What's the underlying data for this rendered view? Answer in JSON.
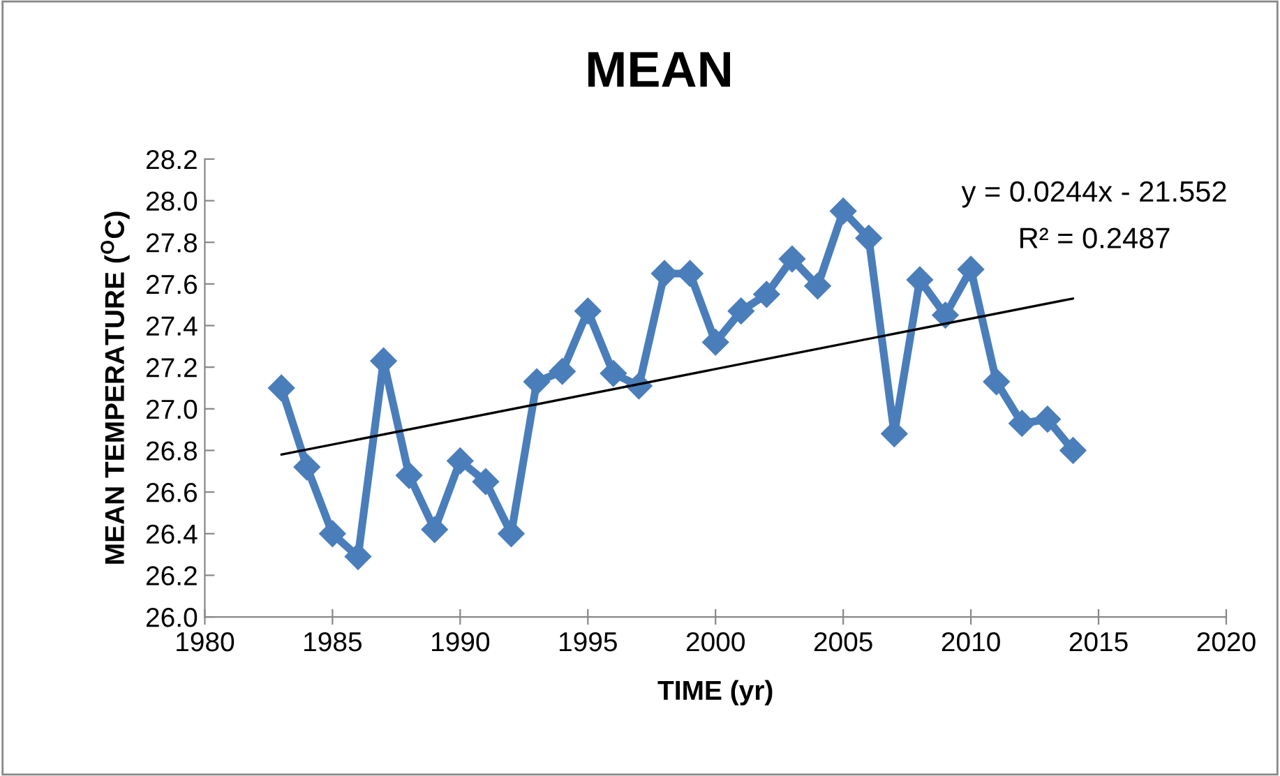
{
  "chart_data": {
    "type": "line",
    "title": "MEAN",
    "xlabel": "TIME (yr)",
    "ylabel": "MEAN TEMPERATURE ($^{O}$C)",
    "x": [
      1983,
      1984,
      1985,
      1986,
      1987,
      1988,
      1989,
      1990,
      1991,
      1992,
      1993,
      1994,
      1995,
      1996,
      1997,
      1998,
      1999,
      2000,
      2001,
      2002,
      2003,
      2004,
      2005,
      2006,
      2007,
      2008,
      2009,
      2010,
      2011,
      2012,
      2013,
      2014
    ],
    "series": [
      {
        "color": "#4a7ebb",
        "marker": "diamond",
        "values": [
          27.1,
          26.72,
          26.4,
          26.29,
          27.23,
          26.68,
          26.42,
          26.75,
          26.65,
          26.4,
          27.13,
          27.18,
          27.47,
          27.17,
          27.11,
          27.65,
          27.65,
          27.32,
          27.47,
          27.55,
          27.72,
          27.59,
          27.95,
          27.82,
          26.88,
          27.62,
          27.45,
          27.67,
          27.13,
          26.93,
          26.95,
          26.8
        ]
      },
      {
        "type": "line",
        "color": "#000000",
        "marker": "none",
        "x": [
          1983,
          2014
        ],
        "values": [
          26.78,
          27.53
        ]
      }
    ],
    "annotations": [
      "y = 0.0244x - 21.552",
      "R² = 0.2487"
    ],
    "xlim": [
      1980,
      2020
    ],
    "xticks": [
      1980,
      1985,
      1990,
      1995,
      2000,
      2005,
      2010,
      2015,
      2020
    ],
    "ylim": [
      26.0,
      28.2
    ],
    "yticks": [
      {
        "value": 26.0,
        "label": "26.0"
      },
      26.2,
      26.4,
      26.6,
      26.8,
      {
        "value": 27.0,
        "label": "27.0"
      },
      27.2,
      27.4,
      27.6,
      27.8,
      {
        "value": 28.0,
        "label": "28.0"
      },
      28.2
    ],
    "grid": false,
    "legend": false
  }
}
